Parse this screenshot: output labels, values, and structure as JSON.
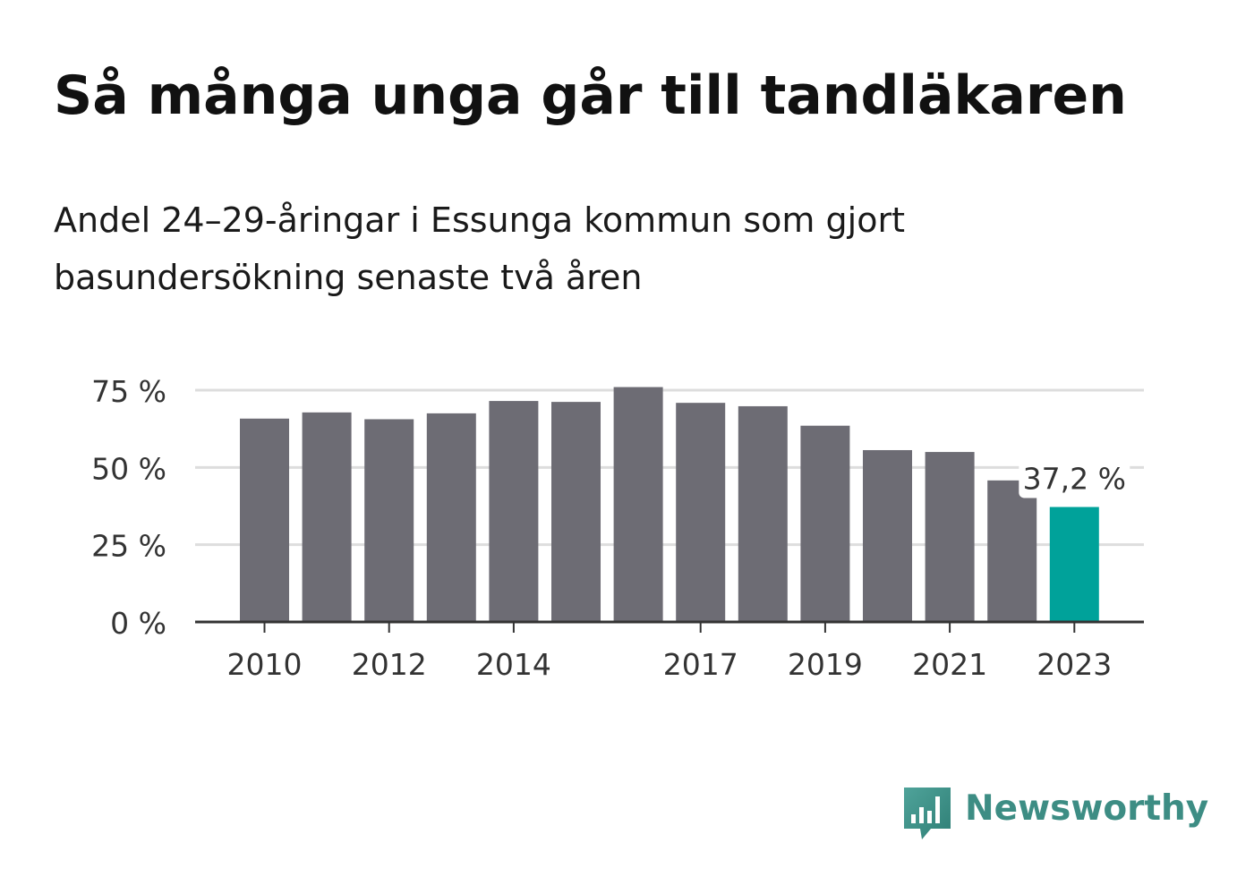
{
  "title": "Så många unga går till tandläkaren",
  "subtitle": "Andel 24–29-åringar i Essunga kommun som gjort basundersökning senaste två åren",
  "brand": {
    "name": "Newsworthy",
    "color": "#3d8d84",
    "icon": "bar-chart-speech-bubble-icon"
  },
  "colors": {
    "bar": "#6d6c74",
    "highlight": "#00a29a",
    "grid": "#dddddd",
    "axis": "#333333"
  },
  "chart_data": {
    "type": "bar",
    "categories": [
      "2010",
      "2011",
      "2012",
      "2013",
      "2014",
      "2015",
      "2016",
      "2017",
      "2018",
      "2019",
      "2020",
      "2021",
      "2022",
      "2023"
    ],
    "values": [
      65.8,
      67.8,
      65.6,
      67.5,
      71.5,
      71.2,
      76.0,
      70.9,
      69.8,
      63.5,
      55.6,
      55.0,
      45.8,
      37.2
    ],
    "highlight_index": 13,
    "value_label": "37,2 %",
    "ylim": [
      0,
      75
    ],
    "yticks": [
      0,
      25,
      50,
      75
    ],
    "ytick_labels": [
      "0 %",
      "25 %",
      "50 %",
      "75 %"
    ],
    "xtick_labels": [
      "2010",
      "2012",
      "2014",
      "2017",
      "2019",
      "2021",
      "2023"
    ],
    "grid": true,
    "legend": "none"
  }
}
